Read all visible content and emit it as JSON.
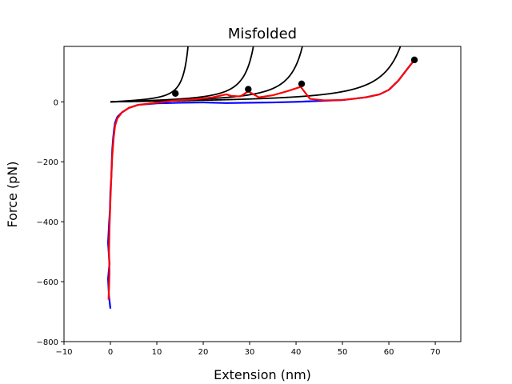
{
  "chart_data": {
    "type": "line",
    "title": "Misfolded",
    "xlabel": "Extension (nm)",
    "ylabel": "Force (pN)",
    "xlim": [
      -10,
      75.5
    ],
    "ylim": [
      -800,
      185
    ],
    "xticks": [
      -10,
      0,
      10,
      20,
      30,
      40,
      50,
      60,
      70
    ],
    "yticks": [
      -800,
      -600,
      -400,
      -200,
      0
    ],
    "xtick_labels": [
      "−10",
      "0",
      "10",
      "20",
      "30",
      "40",
      "50",
      "60",
      "70"
    ],
    "ytick_labels": [
      "−800",
      "−600",
      "−400",
      "−200",
      "0"
    ],
    "grid": false,
    "legend": "none",
    "series": [
      {
        "color": "#0000ff",
        "x": [
          0.0,
          -0.3,
          -0.5,
          -0.2,
          -0.5,
          -0.3,
          -0.1,
          0.0,
          0.2,
          0.3,
          0.4,
          0.6,
          0.8,
          1.0,
          1.5,
          2.5,
          4,
          6,
          10,
          15,
          20,
          25,
          30,
          35,
          40,
          45,
          50,
          55,
          58,
          60,
          62,
          64,
          65.5
        ],
        "y": [
          -690,
          -650,
          -590,
          -540,
          -470,
          -410,
          -360,
          -300,
          -250,
          -200,
          -160,
          -120,
          -90,
          -70,
          -50,
          -35,
          -20,
          -10,
          -5,
          -3,
          -2,
          -4,
          -3,
          -2,
          0,
          3,
          6,
          15,
          25,
          40,
          70,
          110,
          140
        ]
      },
      {
        "color": "#ff0000",
        "x": [
          -0.4,
          -0.3,
          -0.2,
          -0.3,
          -0.2,
          0.0,
          0.2,
          0.4,
          0.7,
          1.0,
          1.5,
          2.5,
          4,
          6,
          10,
          14,
          18,
          22,
          25,
          26,
          28,
          29.7,
          32,
          35,
          38,
          41,
          42,
          43,
          46,
          50,
          55,
          58,
          60,
          62,
          64,
          65.5
        ],
        "y": [
          -660,
          -620,
          -570,
          -500,
          -420,
          -330,
          -250,
          -180,
          -120,
          -80,
          -55,
          -35,
          -20,
          -10,
          -3,
          5,
          8,
          15,
          25,
          20,
          18,
          35,
          15,
          22,
          35,
          50,
          30,
          10,
          5,
          6,
          15,
          25,
          40,
          70,
          110,
          140
        ]
      }
    ],
    "wlc_fits": [
      {
        "color": "#000000",
        "contour_length": 19
      },
      {
        "color": "#000000",
        "contour_length": 35
      },
      {
        "color": "#000000",
        "contour_length": 47
      },
      {
        "color": "#000000",
        "contour_length": 71
      }
    ],
    "rupture_points": {
      "color": "#000000",
      "x": [
        14,
        29.7,
        41.2,
        65.5
      ],
      "y": [
        28,
        42,
        60,
        140
      ]
    }
  }
}
